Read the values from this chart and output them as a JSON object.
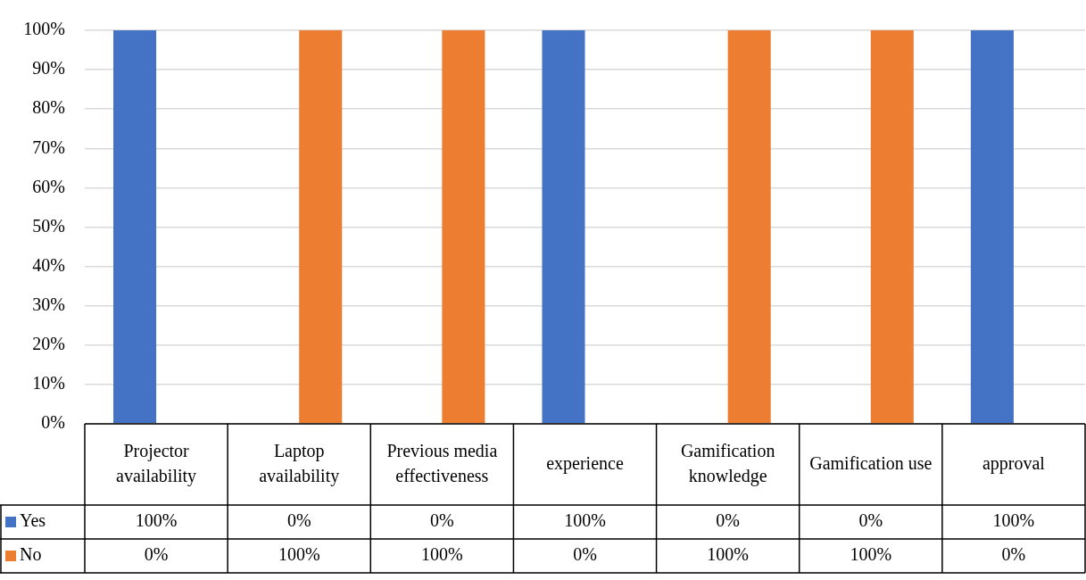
{
  "chart_data": {
    "type": "bar",
    "categories": [
      "Projector availability",
      "Laptop availability",
      "Previous media effectiveness",
      "experience",
      "Gamification knowledge",
      "Gamification use",
      "approval"
    ],
    "series": [
      {
        "name": "Yes",
        "color": "#4472c4",
        "values": [
          100,
          0,
          0,
          100,
          0,
          0,
          100
        ],
        "value_labels": [
          "100%",
          "0%",
          "0%",
          "100%",
          "0%",
          "0%",
          "100%"
        ]
      },
      {
        "name": "No",
        "color": "#ed7d31",
        "values": [
          0,
          100,
          100,
          0,
          100,
          100,
          0
        ],
        "value_labels": [
          "0%",
          "100%",
          "100%",
          "0%",
          "100%",
          "100%",
          "0%"
        ]
      }
    ],
    "ylim": [
      0,
      100
    ],
    "yticks": [
      {
        "value": 0,
        "label": "0%"
      },
      {
        "value": 10,
        "label": "10%"
      },
      {
        "value": 20,
        "label": "20%"
      },
      {
        "value": 30,
        "label": "30%"
      },
      {
        "value": 40,
        "label": "40%"
      },
      {
        "value": 50,
        "label": "50%"
      },
      {
        "value": 60,
        "label": "60%"
      },
      {
        "value": 70,
        "label": "70%"
      },
      {
        "value": 80,
        "label": "80%"
      },
      {
        "value": 90,
        "label": "90%"
      },
      {
        "value": 100,
        "label": "100%"
      }
    ],
    "grid": "y",
    "legend": "bottom"
  }
}
